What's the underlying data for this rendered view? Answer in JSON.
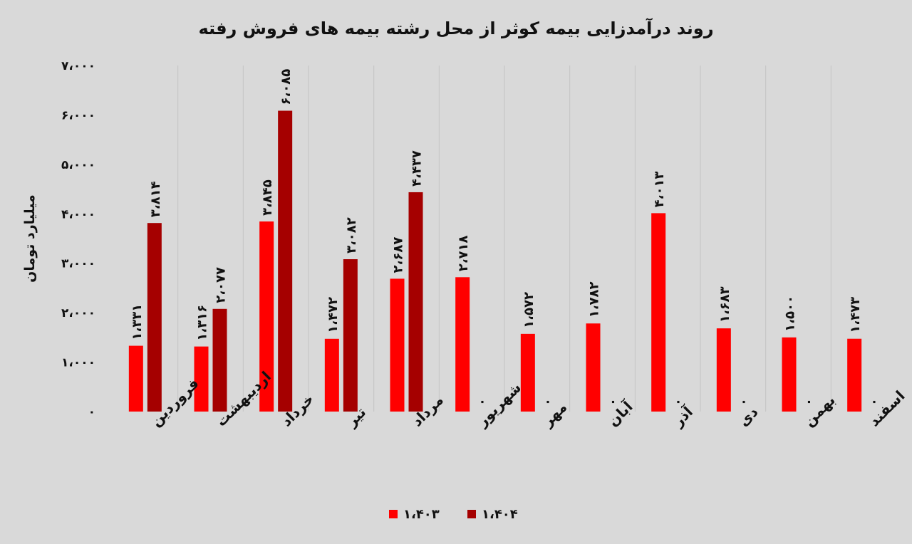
{
  "chart_data": {
    "type": "bar",
    "title": "روند درآمدزایی بیمه کوثر از محل رشته بیمه های فروش رفته",
    "xlabel": "",
    "ylabel": "میلیارد تومان",
    "ylim": [
      0,
      7000
    ],
    "y_ticks": [
      0,
      1000,
      2000,
      3000,
      4000,
      5000,
      6000,
      7000
    ],
    "y_tick_labels": [
      "۰",
      "۱،۰۰۰",
      "۲،۰۰۰",
      "۳،۰۰۰",
      "۴،۰۰۰",
      "۵،۰۰۰",
      "۶،۰۰۰",
      "۷،۰۰۰"
    ],
    "categories": [
      "فروردین",
      "اردیبهشت",
      "خرداد",
      "تیر",
      "مرداد",
      "شهریور",
      "مهر",
      "آبان",
      "آذر",
      "دی",
      "بهمن",
      "اسفند"
    ],
    "series": [
      {
        "name": "۱،۴۰۳",
        "color": "#ff0000",
        "values": [
          1331,
          1316,
          3845,
          1472,
          2687,
          2718,
          1572,
          1782,
          4013,
          1683,
          1500,
          1473
        ],
        "labels": [
          "۱،۳۳۱",
          "۱،۳۱۶",
          "۳،۸۴۵",
          "۱،۴۷۲",
          "۲،۶۸۷",
          "۲،۷۱۸",
          "۱،۵۷۲",
          "۱،۷۸۲",
          "۴،۰۱۳",
          "۱،۶۸۳",
          "۱،۵۰۰",
          "۱،۴۷۳"
        ]
      },
      {
        "name": "۱،۴۰۴",
        "color": "#a50000",
        "values": [
          3814,
          2077,
          6085,
          3082,
          4437,
          0,
          0,
          0,
          0,
          0,
          0,
          0
        ],
        "labels": [
          "۳،۸۱۴",
          "۲،۰۷۷",
          "۶،۰۸۵",
          "۳،۰۸۲",
          "۴،۴۳۷",
          "۰",
          "۰",
          "۰",
          "۰",
          "۰",
          "۰",
          "۰"
        ]
      }
    ],
    "gridlines": "vertical category separators",
    "legend_position": "bottom"
  }
}
